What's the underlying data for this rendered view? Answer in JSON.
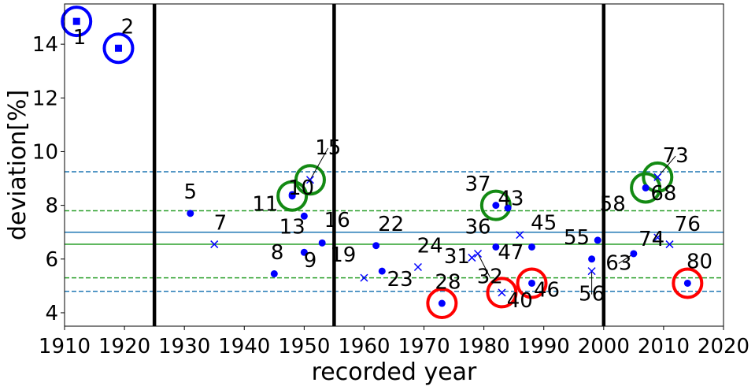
{
  "chart_data": {
    "type": "scatter",
    "xlabel": "recorded year",
    "ylabel": "deviation[%]",
    "xlim": [
      1910,
      2020
    ],
    "ylim": [
      3.5,
      15.5
    ],
    "xticks": [
      1910,
      1920,
      1930,
      1940,
      1950,
      1960,
      1970,
      1980,
      1990,
      2000,
      2010,
      2020
    ],
    "yticks": [
      4,
      6,
      8,
      10,
      12,
      14
    ],
    "grid": false,
    "vertical_lines": [
      1925,
      1955,
      2000
    ],
    "horizontal_lines": [
      {
        "y": 7.0,
        "style": "solid",
        "color": "#1f77b4"
      },
      {
        "y": 6.55,
        "style": "solid",
        "color": "#2ca02c"
      },
      {
        "y": 9.25,
        "style": "dashed",
        "color": "#1f77b4"
      },
      {
        "y": 4.8,
        "style": "dashed",
        "color": "#1f77b4"
      },
      {
        "y": 7.8,
        "style": "dashed",
        "color": "#2ca02c"
      },
      {
        "y": 5.3,
        "style": "dashed",
        "color": "#2ca02c"
      }
    ],
    "points": [
      {
        "label": "1",
        "x": 1912,
        "y": 14.85,
        "marker": "square",
        "circle": "blue",
        "lx": 1912.5,
        "ly": 14.0,
        "leader": false
      },
      {
        "label": "2",
        "x": 1919,
        "y": 13.85,
        "marker": "square",
        "circle": "blue",
        "lx": 1920.5,
        "ly": 14.4,
        "leader": false
      },
      {
        "label": "5",
        "x": 1931,
        "y": 7.7,
        "marker": "dot",
        "circle": "",
        "lx": 1931,
        "ly": 8.25,
        "leader": false
      },
      {
        "label": "7",
        "x": 1935,
        "y": 6.55,
        "marker": "x",
        "circle": "",
        "lx": 1936,
        "ly": 7.1,
        "leader": false
      },
      {
        "label": "8",
        "x": 1945,
        "y": 5.45,
        "marker": "dot",
        "circle": "",
        "lx": 1945.5,
        "ly": 6.0,
        "leader": false
      },
      {
        "label": "9",
        "x": 1950,
        "y": 6.25,
        "marker": "dot",
        "circle": "",
        "lx": 1951,
        "ly": 5.7,
        "leader": false
      },
      {
        "label": "10",
        "x": 1948,
        "y": 8.35,
        "marker": "dot",
        "circle": "green",
        "lx": 1949.5,
        "ly": 8.4,
        "leader": false
      },
      {
        "label": "11",
        "x": 1948,
        "y": 8.4,
        "marker": "dot",
        "circle": "",
        "lx": 1943.5,
        "ly": 7.8,
        "leader": false
      },
      {
        "label": "13",
        "x": 1950,
        "y": 7.6,
        "marker": "dot",
        "circle": "",
        "lx": 1948,
        "ly": 6.95,
        "leader": false
      },
      {
        "label": "15",
        "x": 1951,
        "y": 8.95,
        "marker": "x",
        "circle": "green",
        "lx": 1954,
        "ly": 9.9,
        "leader": true
      },
      {
        "label": "16",
        "x": 1953,
        "y": 6.6,
        "marker": "dot",
        "circle": "",
        "lx": 1955.5,
        "ly": 7.2,
        "leader": false
      },
      {
        "label": "19",
        "x": 1960,
        "y": 5.3,
        "marker": "x",
        "circle": "",
        "lx": 1956.5,
        "ly": 5.9,
        "leader": false
      },
      {
        "label": "22",
        "x": 1962,
        "y": 6.5,
        "marker": "dot",
        "circle": "",
        "lx": 1964.5,
        "ly": 7.05,
        "leader": false
      },
      {
        "label": "23",
        "x": 1963,
        "y": 5.55,
        "marker": "dot",
        "circle": "",
        "lx": 1966,
        "ly": 5.0,
        "leader": false
      },
      {
        "label": "24",
        "x": 1969,
        "y": 5.7,
        "marker": "x",
        "circle": "",
        "lx": 1971,
        "ly": 6.25,
        "leader": false
      },
      {
        "label": "28",
        "x": 1973,
        "y": 4.35,
        "marker": "dot",
        "circle": "red",
        "lx": 1974,
        "ly": 4.9,
        "leader": false
      },
      {
        "label": "31",
        "x": 1978,
        "y": 6.05,
        "marker": "x",
        "circle": "",
        "lx": 1975.5,
        "ly": 5.85,
        "leader": false
      },
      {
        "label": "32",
        "x": 1979,
        "y": 6.2,
        "marker": "x",
        "circle": "",
        "lx": 1981,
        "ly": 5.1,
        "leader": true
      },
      {
        "label": "36",
        "x": 1982,
        "y": 6.45,
        "marker": "dot",
        "circle": "",
        "lx": 1979,
        "ly": 6.95,
        "leader": false
      },
      {
        "label": "37",
        "x": 1982,
        "y": 8.0,
        "marker": "dot",
        "circle": "green",
        "lx": 1979,
        "ly": 8.55,
        "leader": false
      },
      {
        "label": "40",
        "x": 1983,
        "y": 4.75,
        "marker": "x",
        "circle": "red",
        "lx": 1986,
        "ly": 4.2,
        "leader": false
      },
      {
        "label": "43",
        "x": 1984,
        "y": 7.9,
        "marker": "dot",
        "circle": "",
        "lx": 1984.5,
        "ly": 8.0,
        "leader": false
      },
      {
        "label": "45",
        "x": 1986,
        "y": 6.9,
        "marker": "x",
        "circle": "",
        "lx": 1990,
        "ly": 7.1,
        "leader": false
      },
      {
        "label": "46",
        "x": 1988,
        "y": 5.1,
        "marker": "dot",
        "circle": "red",
        "lx": 1990.5,
        "ly": 4.6,
        "leader": false
      },
      {
        "label": "47",
        "x": 1988,
        "y": 6.45,
        "marker": "dot",
        "circle": "",
        "lx": 1984.5,
        "ly": 6.0,
        "leader": false
      },
      {
        "label": "55",
        "x": 1998,
        "y": 6.0,
        "marker": "dot",
        "circle": "",
        "lx": 1995.5,
        "ly": 6.55,
        "leader": false
      },
      {
        "label": "56",
        "x": 1998,
        "y": 5.55,
        "marker": "x",
        "circle": "",
        "lx": 1998,
        "ly": 4.45,
        "leader": true
      },
      {
        "label": "58",
        "x": 1999,
        "y": 6.7,
        "marker": "dot",
        "circle": "",
        "lx": 2001.5,
        "ly": 7.8,
        "leader": false
      },
      {
        "label": "63",
        "x": 2005,
        "y": 6.2,
        "marker": "dot",
        "circle": "",
        "lx": 2002.5,
        "ly": 5.6,
        "leader": true
      },
      {
        "label": "68",
        "x": 2007,
        "y": 8.65,
        "marker": "dot",
        "circle": "green",
        "lx": 2010,
        "ly": 8.2,
        "leader": false
      },
      {
        "label": "73",
        "x": 2009,
        "y": 9.05,
        "marker": "x",
        "circle": "green",
        "lx": 2012,
        "ly": 9.6,
        "leader": true
      },
      {
        "label": "74",
        "x": 2009,
        "y": 6.8,
        "marker": "x",
        "circle": "",
        "lx": 2008,
        "ly": 6.5,
        "leader": false
      },
      {
        "label": "76",
        "x": 2011,
        "y": 6.55,
        "marker": "x",
        "circle": "",
        "lx": 2014,
        "ly": 7.05,
        "leader": false
      },
      {
        "label": "80",
        "x": 2014,
        "y": 5.1,
        "marker": "dot",
        "circle": "red",
        "lx": 2016,
        "ly": 5.65,
        "leader": false
      }
    ]
  },
  "colors": {
    "marker": "#0000ff",
    "circle_blue": "#0000ff",
    "circle_green": "#138a13",
    "circle_red": "#ff0000",
    "hline_blue": "#1f77b4",
    "hline_green": "#2ca02c",
    "vline": "#000000"
  }
}
